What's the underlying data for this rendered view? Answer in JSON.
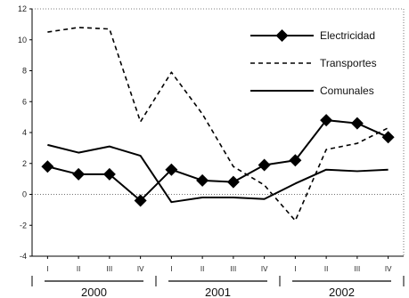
{
  "chart_data": {
    "type": "line",
    "ylim": [
      -4,
      12
    ],
    "yticks": [
      -4,
      -2,
      0,
      2,
      4,
      6,
      8,
      10,
      12
    ],
    "ytick_labels": [
      "-4",
      "-2",
      "0",
      "2",
      "4",
      "6",
      "8",
      "10",
      "12"
    ],
    "categories": [
      "I",
      "II",
      "III",
      "IV",
      "I",
      "II",
      "III",
      "IV",
      "I",
      "II",
      "III",
      "IV"
    ],
    "years": [
      "2000",
      "2001",
      "2002"
    ],
    "grid": false,
    "legend_position": "top-right",
    "series": [
      {
        "name": "Electricidad",
        "style": "solid-diamond",
        "color": "#000000",
        "values": [
          1.8,
          1.3,
          1.3,
          -0.4,
          1.6,
          0.9,
          0.8,
          1.9,
          2.2,
          4.8,
          4.6,
          3.7
        ]
      },
      {
        "name": "Transportes",
        "style": "dashed",
        "color": "#000000",
        "values": [
          10.5,
          10.8,
          10.7,
          4.7,
          7.9,
          5.2,
          1.8,
          0.6,
          -1.7,
          2.9,
          3.3,
          4.3
        ]
      },
      {
        "name": "Comunales",
        "style": "solid",
        "color": "#000000",
        "values": [
          3.2,
          2.7,
          3.1,
          2.5,
          -0.5,
          -0.2,
          -0.2,
          -0.3,
          0.7,
          1.6,
          1.5,
          1.6
        ]
      }
    ]
  }
}
